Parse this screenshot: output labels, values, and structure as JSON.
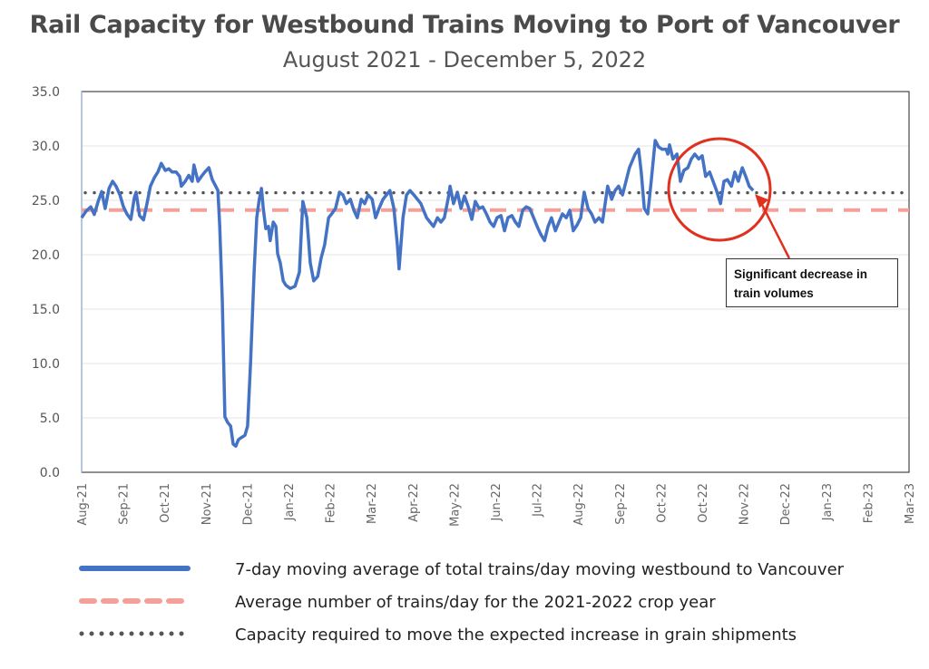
{
  "chart_data": {
    "type": "line",
    "title": "Rail Capacity for Westbound Trains Moving to Port of Vancouver",
    "subtitle": "August 2021 - December 5, 2022",
    "xlabel": "",
    "ylabel": "",
    "ylim": [
      0,
      35
    ],
    "yticks": [
      "0.0",
      "5.0",
      "10.0",
      "15.0",
      "20.0",
      "25.0",
      "30.0",
      "35.0"
    ],
    "x_unit": "months since Aug-21",
    "xlim": [
      0,
      19
    ],
    "xticks": [
      "Aug-21",
      "Sep-21",
      "Oct-21",
      "Nov-21",
      "Dec-21",
      "Jan-22",
      "Feb-22",
      "Mar-22",
      "Apr-22",
      "May-22",
      "Jun-22",
      "Jul-22",
      "Aug-22",
      "Sep-22",
      "Oct-22",
      "Oct-22",
      "Nov-22",
      "Dec-22",
      "Jan-23",
      "Feb-23",
      "Mar-23"
    ],
    "grid": true,
    "series": [
      {
        "name": "7-day moving average of total trains/day moving westbound to Vancouver",
        "color": "#4472c4",
        "style": "solid",
        "x": [
          0,
          0.1,
          0.21,
          0.29,
          0.38,
          0.46,
          0.54,
          0.63,
          0.71,
          0.79,
          0.88,
          0.96,
          1.04,
          1.13,
          1.21,
          1.25,
          1.33,
          1.42,
          1.5,
          1.58,
          1.67,
          1.75,
          1.83,
          1.92,
          2.0,
          2.08,
          2.17,
          2.25,
          2.29,
          2.38,
          2.46,
          2.54,
          2.58,
          2.67,
          2.75,
          2.83,
          2.92,
          3.0,
          3.08,
          3.13,
          3.17,
          3.23,
          3.29,
          3.35,
          3.42,
          3.48,
          3.54,
          3.6,
          3.67,
          3.75,
          3.81,
          3.88,
          3.96,
          4.02,
          4.08,
          4.13,
          4.17,
          4.23,
          4.29,
          4.33,
          4.4,
          4.46,
          4.5,
          4.56,
          4.63,
          4.69,
          4.79,
          4.9,
          5.0,
          5.08,
          5.17,
          5.25,
          5.33,
          5.42,
          5.5,
          5.58,
          5.67,
          5.75,
          5.83,
          5.92,
          6.0,
          6.08,
          6.17,
          6.25,
          6.33,
          6.42,
          6.5,
          6.58,
          6.67,
          6.75,
          6.83,
          6.92,
          7.0,
          7.08,
          7.17,
          7.25,
          7.29,
          7.38,
          7.46,
          7.54,
          7.63,
          7.71,
          7.79,
          7.92,
          8.0,
          8.08,
          8.17,
          8.25,
          8.33,
          8.42,
          8.46,
          8.54,
          8.63,
          8.71,
          8.79,
          8.88,
          8.96,
          9.04,
          9.13,
          9.21,
          9.29,
          9.38,
          9.46,
          9.54,
          9.63,
          9.71,
          9.79,
          9.88,
          9.96,
          10.04,
          10.13,
          10.21,
          10.29,
          10.38,
          10.46,
          10.54,
          10.63,
          10.71,
          10.79,
          10.88,
          10.96,
          11.04,
          11.13,
          11.21,
          11.29,
          11.38,
          11.46,
          11.54,
          11.63,
          11.71,
          11.79,
          11.88,
          11.96,
          12.08,
          12.17,
          12.25,
          12.33,
          12.42,
          12.5,
          12.58,
          12.71,
          12.79,
          12.85,
          12.92,
          13.0,
          13.08,
          13.17,
          13.25,
          13.33,
          13.42,
          13.46,
          13.5,
          13.58,
          13.67,
          13.75,
          13.83,
          13.92,
          14.0,
          14.08,
          14.17,
          14.25,
          14.33,
          14.42,
          14.5,
          14.58,
          14.67,
          14.75,
          14.83,
          14.92,
          15.0,
          15.08,
          15.17,
          15.25,
          15.33,
          15.42
        ],
        "values": [
          23.4,
          24.0,
          24.4,
          23.7,
          24.9,
          25.8,
          24.25,
          26.1,
          26.75,
          26.3,
          25.5,
          24.4,
          23.75,
          23.25,
          25.25,
          25.75,
          23.6,
          23.2,
          24.7,
          26.3,
          27.1,
          27.6,
          28.4,
          27.75,
          27.9,
          27.6,
          27.6,
          27.2,
          26.3,
          26.75,
          27.3,
          26.75,
          28.25,
          26.75,
          27.2,
          27.6,
          28.0,
          26.9,
          26.3,
          25.9,
          22.6,
          15.9,
          5.1,
          4.6,
          4.25,
          2.6,
          2.4,
          3.0,
          3.2,
          3.4,
          4.25,
          10.1,
          18.4,
          23.4,
          25.1,
          26.1,
          24.25,
          22.4,
          22.6,
          21.3,
          23.0,
          22.6,
          20.1,
          19.25,
          17.6,
          17.2,
          16.9,
          17.1,
          18.4,
          24.9,
          23.4,
          19.25,
          17.6,
          18.0,
          19.7,
          20.9,
          23.4,
          23.8,
          24.25,
          25.75,
          25.5,
          24.7,
          25.1,
          24.1,
          23.4,
          25.1,
          24.7,
          25.5,
          25.1,
          23.4,
          24.25,
          25.1,
          25.5,
          25.9,
          24.25,
          20.9,
          18.7,
          23.4,
          25.5,
          25.9,
          25.5,
          25.1,
          24.7,
          23.4,
          23.0,
          22.6,
          23.4,
          23.0,
          23.4,
          25.25,
          26.3,
          24.7,
          25.75,
          24.25,
          25.4,
          24.4,
          23.25,
          24.9,
          24.25,
          24.4,
          23.8,
          23.0,
          22.6,
          23.4,
          23.6,
          22.2,
          23.4,
          23.6,
          23.0,
          22.6,
          24.1,
          24.4,
          24.25,
          23.4,
          22.6,
          21.9,
          21.3,
          22.6,
          23.4,
          22.2,
          23.0,
          23.75,
          23.4,
          24.1,
          22.2,
          22.75,
          23.4,
          25.75,
          24.25,
          23.75,
          23.0,
          23.4,
          23.0,
          26.3,
          25.1,
          25.9,
          26.3,
          25.5,
          26.75,
          28.0,
          29.25,
          29.7,
          27.6,
          24.25,
          23.75,
          26.75,
          30.5,
          29.9,
          29.7,
          29.7,
          29.25,
          30.1,
          28.8,
          29.25,
          26.75,
          27.75,
          28.0,
          28.8,
          29.25,
          28.8,
          29.1,
          27.2,
          27.6,
          26.75,
          25.9,
          24.7,
          26.75,
          26.9,
          26.3,
          27.6,
          26.75,
          28.0,
          27.2,
          26.3,
          25.9
        ]
      },
      {
        "name": "Average number of trains/day for the 2021-2022 crop year",
        "color": "#f4a09a",
        "style": "dashed",
        "constant": 24.1
      },
      {
        "name": "Capacity required to move the expected increase in grain shipments",
        "color": "#555555",
        "style": "dotted",
        "constant": 25.7
      }
    ],
    "annotations": [
      {
        "text_line1": "Significant decrease in",
        "text_line2": "train volumes",
        "color": "#e0301e",
        "target_x": 15.42,
        "target_y": 25.9
      }
    ],
    "legend_position": "bottom"
  }
}
